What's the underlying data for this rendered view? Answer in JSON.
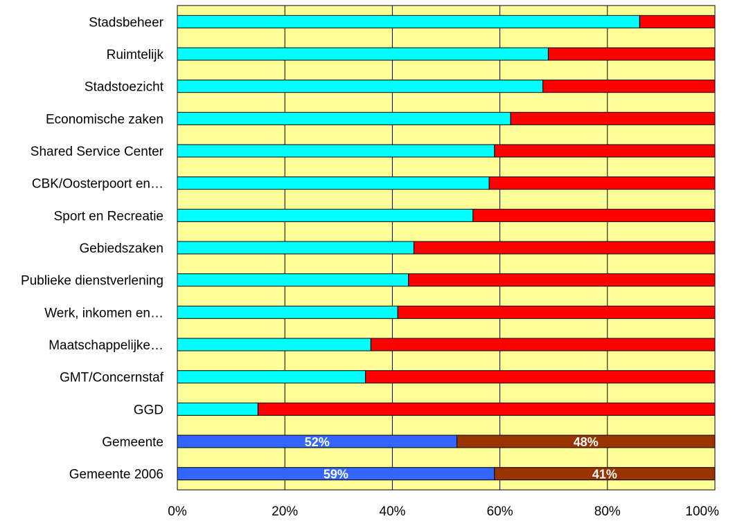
{
  "chart_data": {
    "type": "bar",
    "orientation": "horizontal",
    "stacked": "percent",
    "categories": [
      "Stadsbeheer",
      "Ruimtelijk",
      "Stadstoezicht",
      "Economische zaken",
      "Shared Service Center",
      "CBK/Oosterpoort en…",
      "Sport en Recreatie",
      "Gebiedszaken",
      "Publieke dienstverlening",
      "Werk, inkomen en…",
      "Maatschappelijke…",
      "GMT/Concernstaf",
      "GGD",
      "Gemeente",
      "Gemeente 2006"
    ],
    "series": [
      {
        "values": [
          86,
          69,
          68,
          62,
          59,
          58,
          55,
          44,
          43,
          41,
          36,
          35,
          15,
          52,
          59
        ]
      },
      {
        "values": [
          14,
          31,
          32,
          38,
          41,
          42,
          45,
          56,
          57,
          59,
          64,
          65,
          85,
          48,
          41
        ]
      }
    ],
    "data_labels": {
      "Gemeente": [
        "52%",
        "48%"
      ],
      "Gemeente 2006": [
        "59%",
        "41%"
      ]
    },
    "xticks": [
      "0%",
      "20%",
      "40%",
      "60%",
      "80%",
      "100%"
    ],
    "xlim": [
      0,
      100
    ],
    "grid": "vertical",
    "legend": "none",
    "colors": {
      "plot_background": "#FFFF99",
      "series1": "#00FFFF",
      "series2": "#FF0000",
      "highlight_series1": "#3366FF",
      "highlight_series2": "#993300",
      "gridline": "#000000"
    },
    "highlight_categories": [
      "Gemeente",
      "Gemeente 2006"
    ]
  }
}
